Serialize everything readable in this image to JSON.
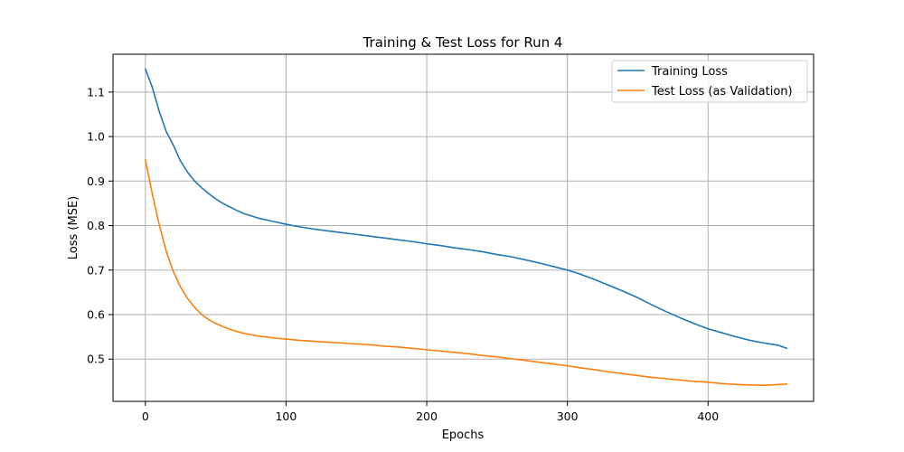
{
  "chart_data": {
    "type": "line",
    "title": "Training & Test Loss for Run 4",
    "xlabel": "Epochs",
    "ylabel": "Loss (MSE)",
    "xlim": [
      -23,
      475
    ],
    "ylim": [
      0.405,
      1.185
    ],
    "xticks": [
      0,
      100,
      200,
      300,
      400
    ],
    "yticks": [
      0.5,
      0.6,
      0.7,
      0.8,
      0.9,
      1.0,
      1.1
    ],
    "x_tick_labels": [
      "0",
      "100",
      "200",
      "300",
      "400"
    ],
    "y_tick_labels": [
      "0.5",
      "0.6",
      "0.7",
      "0.8",
      "0.9",
      "1.0",
      "1.1"
    ],
    "grid": true,
    "legend_position": "top-right",
    "series": [
      {
        "name": "Training Loss",
        "color": "#1f77b4",
        "x": [
          0,
          5,
          10,
          15,
          20,
          25,
          30,
          35,
          40,
          45,
          50,
          55,
          60,
          65,
          70,
          80,
          90,
          100,
          110,
          120,
          130,
          140,
          150,
          160,
          170,
          180,
          190,
          200,
          210,
          220,
          230,
          240,
          250,
          260,
          270,
          280,
          290,
          300,
          310,
          320,
          330,
          340,
          350,
          360,
          370,
          380,
          390,
          400,
          410,
          420,
          430,
          440,
          450,
          456
        ],
        "y": [
          1.152,
          1.11,
          1.055,
          1.01,
          0.98,
          0.945,
          0.92,
          0.9,
          0.885,
          0.872,
          0.86,
          0.85,
          0.842,
          0.834,
          0.827,
          0.817,
          0.81,
          0.803,
          0.797,
          0.792,
          0.788,
          0.784,
          0.78,
          0.776,
          0.772,
          0.768,
          0.764,
          0.759,
          0.755,
          0.75,
          0.746,
          0.741,
          0.735,
          0.73,
          0.723,
          0.716,
          0.708,
          0.7,
          0.69,
          0.678,
          0.665,
          0.652,
          0.638,
          0.622,
          0.607,
          0.593,
          0.58,
          0.568,
          0.559,
          0.55,
          0.542,
          0.536,
          0.531,
          0.524
        ]
      },
      {
        "name": "Test Loss (as Validation)",
        "color": "#ff7f0e",
        "x": [
          0,
          5,
          10,
          15,
          20,
          25,
          30,
          35,
          40,
          45,
          50,
          55,
          60,
          65,
          70,
          80,
          90,
          100,
          110,
          120,
          130,
          140,
          150,
          160,
          170,
          180,
          190,
          200,
          210,
          220,
          230,
          240,
          250,
          260,
          270,
          280,
          290,
          300,
          310,
          320,
          330,
          340,
          350,
          360,
          370,
          380,
          390,
          400,
          410,
          420,
          430,
          440,
          450,
          456
        ],
        "y": [
          0.948,
          0.87,
          0.8,
          0.74,
          0.696,
          0.662,
          0.636,
          0.616,
          0.6,
          0.589,
          0.58,
          0.573,
          0.567,
          0.562,
          0.558,
          0.552,
          0.548,
          0.545,
          0.542,
          0.54,
          0.538,
          0.536,
          0.534,
          0.532,
          0.529,
          0.527,
          0.524,
          0.521,
          0.518,
          0.515,
          0.512,
          0.508,
          0.505,
          0.501,
          0.497,
          0.493,
          0.489,
          0.485,
          0.48,
          0.476,
          0.471,
          0.467,
          0.463,
          0.459,
          0.456,
          0.453,
          0.45,
          0.448,
          0.445,
          0.443,
          0.442,
          0.441,
          0.443,
          0.444
        ]
      }
    ]
  }
}
